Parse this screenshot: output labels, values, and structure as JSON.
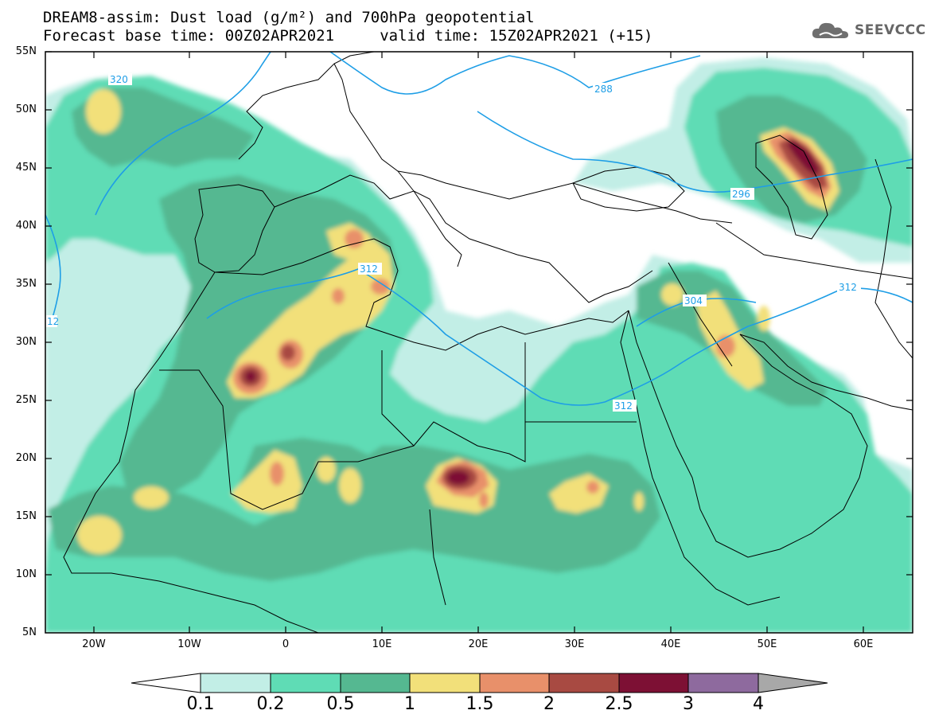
{
  "header": {
    "title_line1": "DREAM8-assim: Dust load (g/m²) and 700hPa geopotential",
    "title_line2": "Forecast base time: 00Z02APR2021     valid time: 15Z02APR2021 (+15)",
    "logo_text": "SEEVCCC",
    "logo_icon": "cloud-icon"
  },
  "axes": {
    "lat_labels": [
      "55N",
      "50N",
      "45N",
      "40N",
      "35N",
      "30N",
      "25N",
      "20N",
      "15N",
      "10N",
      "5N"
    ],
    "lon_labels": [
      "20W",
      "10W",
      "0",
      "10E",
      "20E",
      "30E",
      "40E",
      "50E",
      "60E"
    ]
  },
  "contours": {
    "labels": [
      "320",
      "288",
      "296",
      "312",
      "304",
      "312",
      "312",
      "12"
    ]
  },
  "colorbar": {
    "labels": [
      "0.1",
      "0.2",
      "0.5",
      "1",
      "1.5",
      "2",
      "2.5",
      "3",
      "4"
    ],
    "colors": [
      "#ffffff",
      "#c2eee6",
      "#5fdcb5",
      "#55b891",
      "#f2e07a",
      "#e8906a",
      "#a84a42",
      "#7d1034",
      "#8e6a9e",
      "#a8a8a8"
    ]
  },
  "colors": {
    "land_outline": "#000000",
    "geopotential_line": "#1e9ee6"
  }
}
